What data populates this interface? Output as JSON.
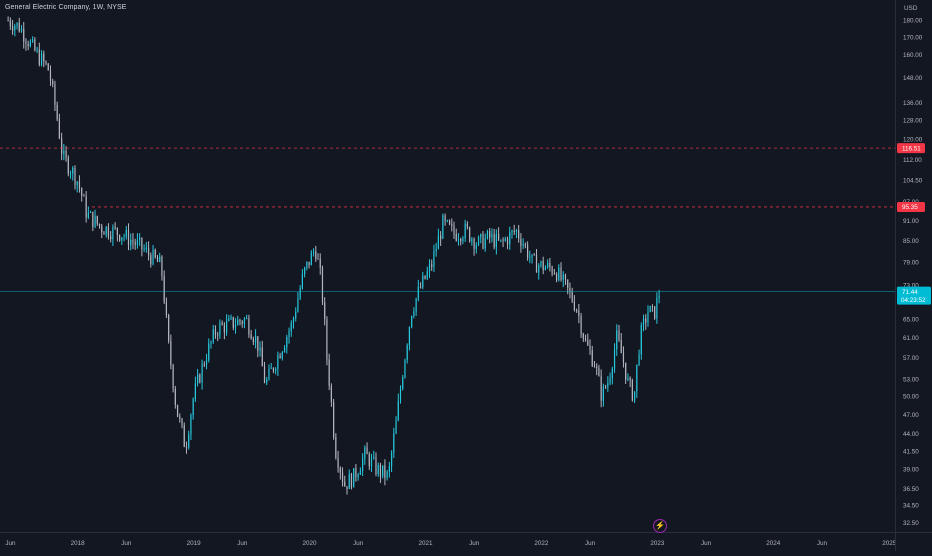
{
  "header": {
    "title": "General Electric Company, 1W, NYSE"
  },
  "colors": {
    "background": "#131722",
    "up": "#26c6da",
    "down": "#b2b5be",
    "level_line": "#f23645",
    "last_price": "#00bcd4"
  },
  "icons": {
    "event_marker": "lightning-icon"
  },
  "chart_data": {
    "type": "candlestick",
    "currency": "USD",
    "y_ticks": [
      "180.00",
      "170.00",
      "160.00",
      "148.00",
      "136.00",
      "128.00",
      "120.00",
      "112.00",
      "104.50",
      "97.00",
      "91.00",
      "85.00",
      "79.00",
      "73.00",
      "65.00",
      "61.00",
      "57.00",
      "53.00",
      "50.00",
      "47.00",
      "44.00",
      "41.50",
      "39.00",
      "36.50",
      "34.50",
      "32.50"
    ],
    "x_ticks": [
      "Jun",
      "2018",
      "Jun",
      "2019",
      "Jun",
      "2020",
      "Jun",
      "2021",
      "Jun",
      "2022",
      "Jun",
      "2023",
      "Jun",
      "2024",
      "Jun",
      "2025"
    ],
    "x_range": [
      2017.33,
      2025.05
    ],
    "y_scale": "log",
    "ylim": [
      31.5,
      193
    ],
    "levels": [
      {
        "price": 116.51,
        "label": "116.51"
      },
      {
        "price": 95.35,
        "label": "95.35"
      }
    ],
    "last_price": {
      "value": 71.44,
      "label": "71.44",
      "countdown": "04:23:52"
    },
    "weekly_close": [
      [
        2017.4,
        180
      ],
      [
        2017.5,
        176
      ],
      [
        2017.62,
        163
      ],
      [
        2017.75,
        152
      ],
      [
        2017.82,
        130
      ],
      [
        2017.87,
        113
      ],
      [
        2017.95,
        108
      ],
      [
        2018.0,
        104
      ],
      [
        2018.08,
        93
      ],
      [
        2018.2,
        89
      ],
      [
        2018.38,
        87
      ],
      [
        2018.55,
        83
      ],
      [
        2018.72,
        78
      ],
      [
        2018.78,
        60
      ],
      [
        2018.85,
        48
      ],
      [
        2018.93,
        42
      ],
      [
        2019.0,
        50
      ],
      [
        2019.1,
        57
      ],
      [
        2019.2,
        63
      ],
      [
        2019.32,
        64
      ],
      [
        2019.45,
        65
      ],
      [
        2019.55,
        60
      ],
      [
        2019.62,
        52
      ],
      [
        2019.72,
        57
      ],
      [
        2019.85,
        64
      ],
      [
        2019.95,
        76
      ],
      [
        2020.05,
        83
      ],
      [
        2020.1,
        74
      ],
      [
        2020.15,
        57
      ],
      [
        2020.22,
        42
      ],
      [
        2020.3,
        37
      ],
      [
        2020.38,
        38
      ],
      [
        2020.48,
        41
      ],
      [
        2020.58,
        39
      ],
      [
        2020.68,
        38
      ],
      [
        2020.75,
        46
      ],
      [
        2020.82,
        57
      ],
      [
        2020.88,
        67
      ],
      [
        2020.95,
        72
      ],
      [
        2021.05,
        78
      ],
      [
        2021.15,
        90
      ],
      [
        2021.25,
        87
      ],
      [
        2021.35,
        88
      ],
      [
        2021.45,
        84
      ],
      [
        2021.55,
        86
      ],
      [
        2021.65,
        84
      ],
      [
        2021.78,
        88
      ],
      [
        2021.85,
        84
      ],
      [
        2021.92,
        79
      ],
      [
        2022.0,
        78
      ],
      [
        2022.12,
        77
      ],
      [
        2022.22,
        72
      ],
      [
        2022.3,
        68
      ],
      [
        2022.38,
        60
      ],
      [
        2022.46,
        56
      ],
      [
        2022.52,
        50
      ],
      [
        2022.58,
        53
      ],
      [
        2022.65,
        61
      ],
      [
        2022.7,
        57
      ],
      [
        2022.75,
        52
      ],
      [
        2022.8,
        50
      ],
      [
        2022.85,
        61
      ],
      [
        2022.92,
        67
      ],
      [
        2022.97,
        66
      ],
      [
        2023.02,
        71.44
      ]
    ]
  }
}
